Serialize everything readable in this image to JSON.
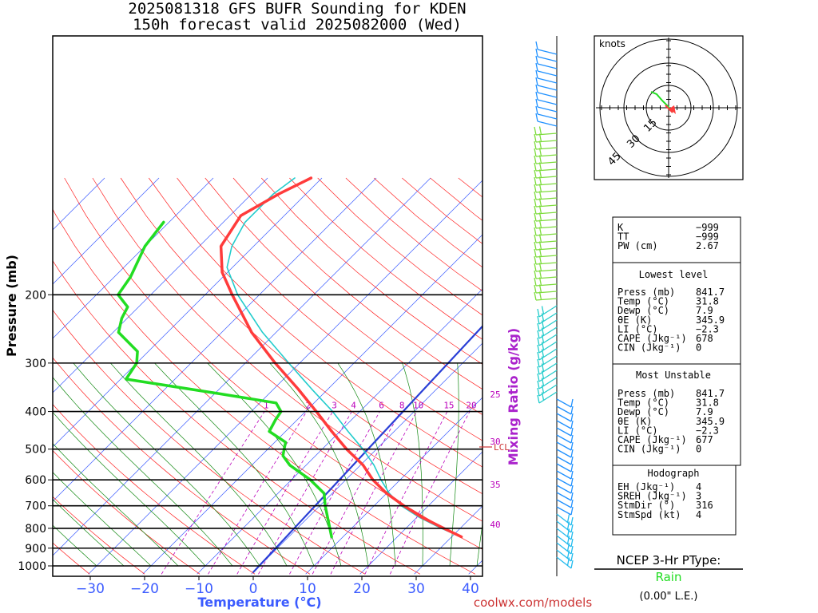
{
  "title": {
    "line1": "2025081318 GFS BUFR Sounding for KDEN",
    "line2": "150h forecast valid 2025082000 (Wed)"
  },
  "colors": {
    "temperature": "#ff3b3b",
    "dewpoint": "#22dd22",
    "parcel": "#2a3fd6",
    "virtual_temp": "#22cccc",
    "isotherm": "#3b5bff",
    "dry_adiabat": "#ff2020",
    "moist_adiabat": "#118811",
    "mixing_ratio": "#bb00bb",
    "axis_label": "#3b5bff",
    "mixing_label": "#aa22cc",
    "rain": "#22dd22"
  },
  "chart_data": {
    "type": "skew-t",
    "xlabel": "Temperature (°C)",
    "ylabel": "Pressure (mb)",
    "mixing_ratio_label": "Mixing Ratio (g/kg)",
    "xlim": [
      -38,
      42
    ],
    "ylim_mb": [
      1050,
      100
    ],
    "x_ticks": [
      "−30",
      "−20",
      "−10",
      "0",
      "10",
      "20",
      "30",
      "40"
    ],
    "x_tick_values": [
      -30,
      -20,
      -10,
      0,
      10,
      20,
      30,
      40
    ],
    "pressure_ticks": [
      {
        "p": 200,
        "label": "200"
      },
      {
        "p": 300,
        "label": "300"
      },
      {
        "p": 400,
        "label": "400"
      },
      {
        "p": 500,
        "label": "500"
      },
      {
        "p": 600,
        "label": "600"
      },
      {
        "p": 700,
        "label": "700"
      },
      {
        "p": 800,
        "label": "800"
      },
      {
        "p": 900,
        "label": "900"
      },
      {
        "p": 1000,
        "label": "1000"
      }
    ],
    "mixing_ratio_lines": [
      {
        "w": 1,
        "label": "1"
      },
      {
        "w": 2,
        "label": "2"
      },
      {
        "w": 3,
        "label": "3"
      },
      {
        "w": 4,
        "label": "4"
      },
      {
        "w": 6,
        "label": "6"
      },
      {
        "w": 8,
        "label": "8"
      },
      {
        "w": 10,
        "label": "10"
      },
      {
        "w": 15,
        "label": "15"
      },
      {
        "w": 20,
        "label": "20"
      }
    ],
    "theta_e_labels": [
      "25",
      "30",
      "35",
      "40"
    ],
    "lcl_label": "LCL",
    "series": [
      {
        "points": [
          [
            841.7,
            31.8
          ],
          [
            800,
            27
          ],
          [
            750,
            21
          ],
          [
            700,
            15.5
          ],
          [
            650,
            10
          ],
          [
            600,
            5
          ],
          [
            550,
            0.5
          ],
          [
            500,
            -5.5
          ],
          [
            450,
            -11.5
          ],
          [
            400,
            -18
          ],
          [
            350,
            -25.5
          ],
          [
            300,
            -34.5
          ],
          [
            250,
            -44.5
          ],
          [
            200,
            -55
          ],
          [
            175,
            -61
          ],
          [
            150,
            -66
          ],
          [
            125,
            -68
          ],
          [
            110,
            -65
          ],
          [
            100,
            -62
          ]
        ]
      },
      {
        "points": [
          [
            841.7,
            7.9
          ],
          [
            800,
            6
          ],
          [
            700,
            1
          ],
          [
            650,
            -1.5
          ],
          [
            600,
            -6.5
          ],
          [
            550,
            -13
          ],
          [
            520,
            -16
          ],
          [
            500,
            -17
          ],
          [
            480,
            -18
          ],
          [
            450,
            -23
          ],
          [
            420,
            -24
          ],
          [
            400,
            -24.5
          ],
          [
            380,
            -27
          ],
          [
            360,
            -39
          ],
          [
            330,
            -59
          ],
          [
            300,
            -60
          ],
          [
            280,
            -62
          ],
          [
            250,
            -69
          ],
          [
            230,
            -71
          ],
          [
            215,
            -72
          ],
          [
            200,
            -76
          ],
          [
            180,
            -77
          ],
          [
            150,
            -80
          ],
          [
            130,
            -81
          ]
        ]
      },
      {
        "points": [
          [
            841.7,
            31.8
          ],
          [
            800,
            26.5
          ],
          [
            750,
            20.5
          ],
          [
            700,
            15
          ],
          [
            650,
            10.5
          ],
          [
            600,
            6.5
          ],
          [
            550,
            2.5
          ],
          [
            500,
            -2.5
          ],
          [
            450,
            -8.5
          ],
          [
            400,
            -15
          ],
          [
            350,
            -23
          ],
          [
            300,
            -32
          ],
          [
            250,
            -42.5
          ],
          [
            200,
            -54
          ],
          [
            170,
            -61
          ],
          [
            150,
            -64
          ],
          [
            130,
            -66
          ],
          [
            110,
            -66
          ],
          [
            100,
            -65
          ]
        ]
      }
    ],
    "parcel_line": [
      [
        1040,
        0
      ],
      [
        100,
        -5
      ]
    ]
  },
  "hodograph": {
    "unit_label": "knots",
    "ring_labels": [
      "15",
      "30",
      "45"
    ]
  },
  "indices": {
    "rows": [
      {
        "label": "K",
        "value": "−999"
      },
      {
        "label": "TT",
        "value": "−999"
      },
      {
        "label": "PW (cm)",
        "value": "2.67"
      }
    ],
    "lowest_title": "Lowest level",
    "lowest": [
      {
        "label": "Press (mb)",
        "value": "841.7"
      },
      {
        "label": "Temp (°C)",
        "value": "31.8"
      },
      {
        "label": "Dewp (°C)",
        "value": "7.9"
      },
      {
        "label": "θE (K)",
        "value": "345.9"
      },
      {
        "label": "LI (°C)",
        "value": "−2.3"
      },
      {
        "label": "CAPE (Jkg⁻¹)",
        "value": "678"
      },
      {
        "label": "CIN (Jkg⁻¹)",
        "value": "0"
      }
    ],
    "mu_title": "Most Unstable",
    "mu": [
      {
        "label": "Press (mb)",
        "value": "841.7"
      },
      {
        "label": "Temp (°C)",
        "value": "31.8"
      },
      {
        "label": "Dewp (°C)",
        "value": "7.9"
      },
      {
        "label": "θE (K)",
        "value": "345.9"
      },
      {
        "label": "LI (°C)",
        "value": "−2.3"
      },
      {
        "label": "CAPE (Jkg⁻¹)",
        "value": "677"
      },
      {
        "label": "CIN (Jkg⁻¹)",
        "value": "0"
      }
    ],
    "hodo_title": "Hodograph",
    "hodo": [
      {
        "label": "EH (Jkg⁻¹)",
        "value": "4"
      },
      {
        "label": "SREH (Jkg⁻¹)",
        "value": "3"
      },
      {
        "label": "StmDir (°)",
        "value": "316"
      },
      {
        "label": "StmSpd (kt)",
        "value": "4"
      }
    ]
  },
  "ptype": {
    "title": "NCEP 3-Hr PType:",
    "value": "Rain",
    "amount": "(0.00\" L.E.)"
  },
  "credit": "coolwx.com/models"
}
